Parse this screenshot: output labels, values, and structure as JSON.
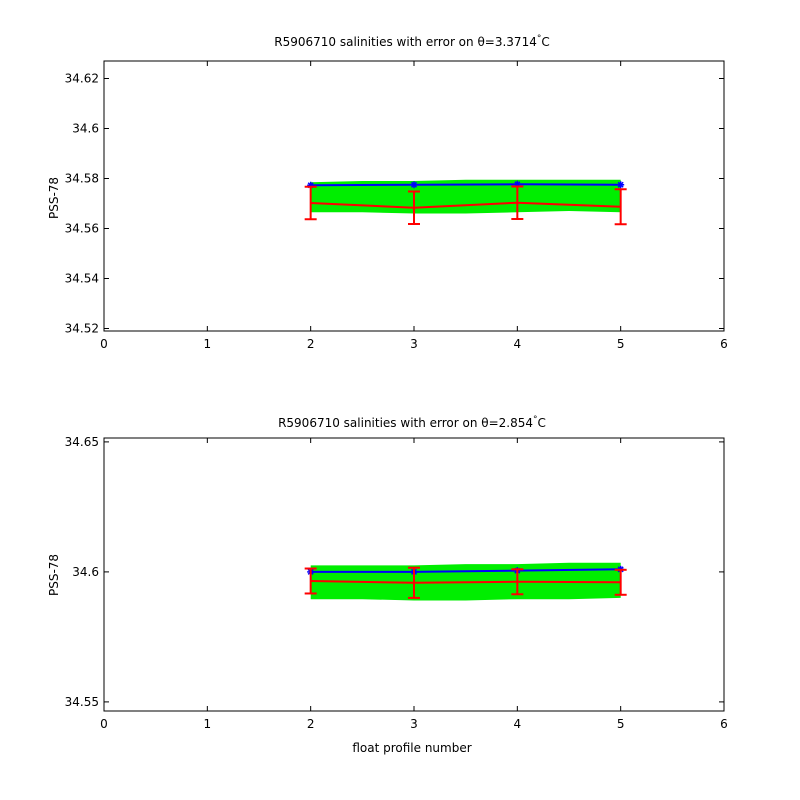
{
  "chart_data": [
    {
      "type": "line",
      "title": "R5906710 salinities with error on θ=3.3714°C",
      "title_prefix": "R5906710 salinities with error on θ=3.3714",
      "title_degree": "°",
      "title_unit": "C",
      "xlabel": "",
      "ylabel": "PSS-78",
      "xlim": [
        0,
        6
      ],
      "ylim": [
        34.519,
        34.627
      ],
      "xticks": [
        0,
        1,
        2,
        3,
        4,
        5,
        6
      ],
      "yticks": [
        34.52,
        34.54,
        34.56,
        34.58,
        34.6,
        34.62
      ],
      "ytick_labels": [
        "34.52",
        "34.54",
        "34.56",
        "34.58",
        "34.6",
        "34.62"
      ],
      "grid": false,
      "colors": {
        "band": "#00ee00",
        "blue_line": "#0000ff",
        "red_line": "#ff0000"
      },
      "band": {
        "x": [
          2,
          2.5,
          3,
          3.5,
          4,
          4.5,
          5
        ],
        "upper": [
          34.5785,
          34.579,
          34.579,
          34.5795,
          34.5795,
          34.5795,
          34.5795
        ],
        "lower": [
          34.5665,
          34.5665,
          34.566,
          34.566,
          34.5665,
          34.567,
          34.5665
        ]
      },
      "series": [
        {
          "x": [
            2,
            3,
            4,
            5
          ],
          "values": [
            34.5773,
            34.5775,
            34.5777,
            34.5775
          ],
          "color": "#0000ff",
          "markers": true
        },
        {
          "x": [
            2,
            3,
            4,
            5
          ],
          "values": [
            34.5702,
            34.5683,
            34.5703,
            34.5687
          ],
          "color": "#ff0000",
          "error": [
            0.0065,
            0.0065,
            0.0065,
            0.007
          ]
        }
      ]
    },
    {
      "type": "line",
      "title": "R5906710 salinities with error on θ=2.854°C",
      "title_prefix": "R5906710 salinities with error on θ=2.854",
      "title_degree": "°",
      "title_unit": "C",
      "xlabel": "float profile number",
      "ylabel": "PSS-78",
      "xlim": [
        0,
        6
      ],
      "ylim": [
        34.5465,
        34.6515
      ],
      "xticks": [
        0,
        1,
        2,
        3,
        4,
        5,
        6
      ],
      "yticks": [
        34.55,
        34.6,
        34.65
      ],
      "ytick_labels": [
        "34.55",
        "34.6",
        "34.65"
      ],
      "grid": false,
      "colors": {
        "band": "#00ee00",
        "blue_line": "#0000ff",
        "red_line": "#ff0000"
      },
      "band": {
        "x": [
          2,
          2.5,
          3,
          3.5,
          4,
          4.5,
          5
        ],
        "upper": [
          34.6025,
          34.6025,
          34.6025,
          34.603,
          34.603,
          34.6035,
          34.6035
        ],
        "lower": [
          34.5895,
          34.5895,
          34.589,
          34.589,
          34.5895,
          34.5895,
          34.59
        ]
      },
      "series": [
        {
          "x": [
            2,
            3,
            4,
            5
          ],
          "values": [
            34.6,
            34.6,
            34.6005,
            34.601
          ],
          "color": "#0000ff",
          "markers": true
        },
        {
          "x": [
            2,
            3,
            4,
            5
          ],
          "values": [
            34.5965,
            34.5958,
            34.5962,
            34.596
          ],
          "color": "#ff0000",
          "error": [
            0.0048,
            0.0058,
            0.0048,
            0.0048
          ]
        }
      ]
    }
  ]
}
